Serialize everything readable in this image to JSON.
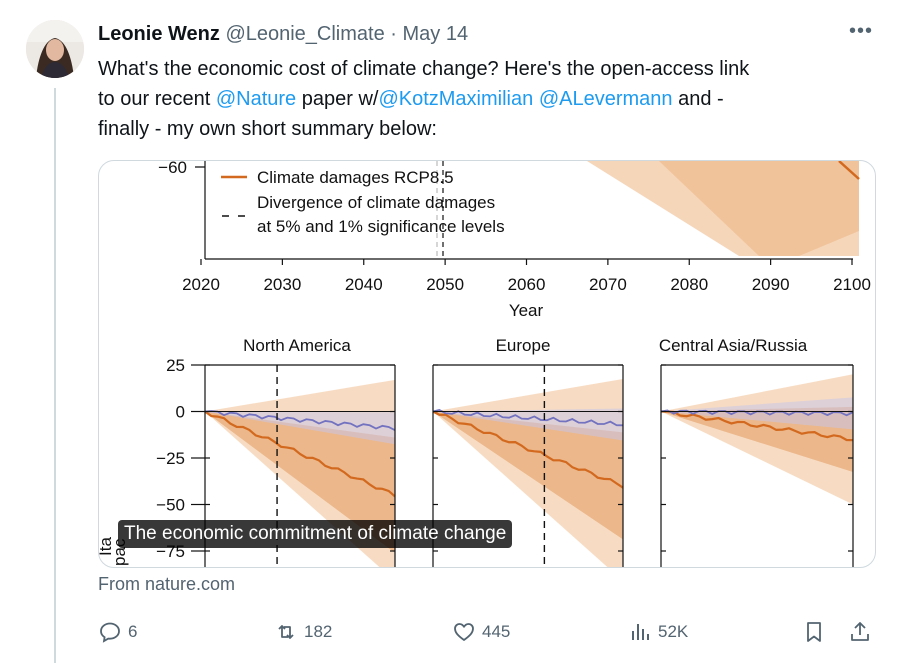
{
  "tweet": {
    "author_name": "Leonie Wenz",
    "handle": "@Leonie_Climate",
    "separator": "·",
    "date": "May 14",
    "text_1": "What's the economic cost of climate change? Here's the open-access link",
    "text_2": "to our recent ",
    "mention_1": "@Nature",
    "text_3": " paper w/",
    "mention_2": "@KotzMaximilian",
    "text_4": " ",
    "mention_3": "@ALevermann",
    "text_5": " and -",
    "text_6": "finally - my own short summary below:"
  },
  "card": {
    "caption": "The economic commitment of climate change",
    "source": "From nature.com"
  },
  "actions": {
    "replies": "6",
    "reposts": "182",
    "likes": "445",
    "views": "52K"
  },
  "colors": {
    "accent_link": "#1d9bf0",
    "damages_line": "#d2691e",
    "baseline_line": "#7272c0",
    "band_light": "#f6d6b9",
    "band_dark": "#e7a772"
  },
  "chart_data": [
    {
      "type": "line",
      "x": [
        2020,
        2030,
        2040,
        2050,
        2060,
        2070,
        2080,
        2090,
        2100
      ],
      "xlabel": "Year",
      "y_tick_visible": "−60",
      "legend": [
        "Climate damages RCP8.5",
        "Divergence of climate damages",
        "at 5% and 1% significance levels"
      ],
      "divergence_year": 2049
    },
    {
      "type": "line",
      "title": "North America",
      "yticks": [
        "25",
        "0",
        "−25",
        "−50",
        "−75"
      ],
      "ylim": [
        -75,
        25
      ],
      "x": [
        2020,
        2049
      ],
      "series": [
        {
          "values": [
            0,
            -45
          ]
        },
        {
          "values": [
            0,
            -9
          ]
        }
      ],
      "divergence_year": 2031,
      "ylabel_fragment": "Ita pac"
    },
    {
      "type": "line",
      "title": "Europe",
      "x": [
        2020,
        2049
      ],
      "series": [
        {
          "values": [
            0,
            -40
          ]
        },
        {
          "values": [
            0,
            -7
          ]
        }
      ],
      "divergence_year": 2037
    },
    {
      "type": "line",
      "title": "Central Asia/Russia",
      "x": [
        2020,
        2049
      ],
      "series": [
        {
          "values": [
            0,
            -15
          ]
        },
        {
          "values": [
            0,
            -1
          ]
        }
      ]
    }
  ]
}
